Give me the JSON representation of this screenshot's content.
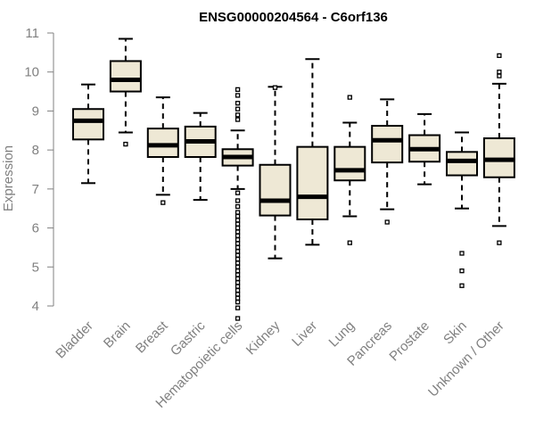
{
  "chart_data": {
    "type": "boxplot",
    "title": "ENSG00000204564 - C6orf136",
    "ylabel": "Expression",
    "xlabel": "",
    "ylim": [
      3.85,
      11.2
    ],
    "yticks": [
      4,
      5,
      6,
      7,
      8,
      9,
      10,
      11
    ],
    "box_fill": "#eee8d5",
    "box_stroke": "#000000",
    "categories": [
      "Bladder",
      "Brain",
      "Breast",
      "Gastric",
      "Hematopoietic cells",
      "Kidney",
      "Liver",
      "Lung",
      "Pancreas",
      "Prostate",
      "Skin",
      "Unknown / Other"
    ],
    "boxes": [
      {
        "name": "Bladder",
        "min": 7.15,
        "q1": 8.27,
        "median": 8.75,
        "q3": 9.05,
        "max": 9.68,
        "outliers": []
      },
      {
        "name": "Brain",
        "min": 8.45,
        "q1": 9.5,
        "median": 9.8,
        "q3": 10.28,
        "max": 10.85,
        "outliers": [
          8.15
        ]
      },
      {
        "name": "Breast",
        "min": 6.85,
        "q1": 7.82,
        "median": 8.12,
        "q3": 8.55,
        "max": 9.35,
        "outliers": [
          6.65
        ]
      },
      {
        "name": "Gastric",
        "min": 6.72,
        "q1": 7.82,
        "median": 8.22,
        "q3": 8.6,
        "max": 8.95,
        "outliers": []
      },
      {
        "name": "Hematopoietic cells",
        "min": 7.0,
        "q1": 7.6,
        "median": 7.82,
        "q3": 8.02,
        "max": 8.5,
        "outliers": [
          9.55,
          9.4,
          9.2,
          9.05,
          8.9,
          8.78,
          6.9,
          6.7,
          6.55,
          6.4,
          6.3,
          6.2,
          6.1,
          6.0,
          5.9,
          5.8,
          5.7,
          5.6,
          5.5,
          5.4,
          5.3,
          5.2,
          5.1,
          5.0,
          4.9,
          4.8,
          4.7,
          4.6,
          4.5,
          4.4,
          4.3,
          4.2,
          4.1,
          3.95,
          3.68
        ]
      },
      {
        "name": "Kidney",
        "min": 5.22,
        "q1": 6.32,
        "median": 6.7,
        "q3": 7.62,
        "max": 9.62,
        "outliers": [
          9.6
        ]
      },
      {
        "name": "Liver",
        "min": 5.57,
        "q1": 6.22,
        "median": 6.8,
        "q3": 8.08,
        "max": 10.33,
        "outliers": []
      },
      {
        "name": "Lung",
        "min": 6.3,
        "q1": 7.22,
        "median": 7.48,
        "q3": 8.08,
        "max": 8.7,
        "outliers": [
          9.35,
          5.62
        ]
      },
      {
        "name": "Pancreas",
        "min": 6.48,
        "q1": 7.68,
        "median": 8.25,
        "q3": 8.62,
        "max": 9.3,
        "outliers": [
          6.15
        ]
      },
      {
        "name": "Prostate",
        "min": 7.12,
        "q1": 7.7,
        "median": 8.02,
        "q3": 8.38,
        "max": 8.92,
        "outliers": []
      },
      {
        "name": "Skin",
        "min": 6.5,
        "q1": 7.35,
        "median": 7.72,
        "q3": 7.95,
        "max": 8.45,
        "outliers": [
          5.35,
          4.9,
          4.52
        ]
      },
      {
        "name": "Unknown / Other",
        "min": 6.05,
        "q1": 7.3,
        "median": 7.75,
        "q3": 8.3,
        "max": 9.7,
        "outliers": [
          10.42,
          10.0,
          9.9,
          5.62
        ]
      }
    ]
  }
}
